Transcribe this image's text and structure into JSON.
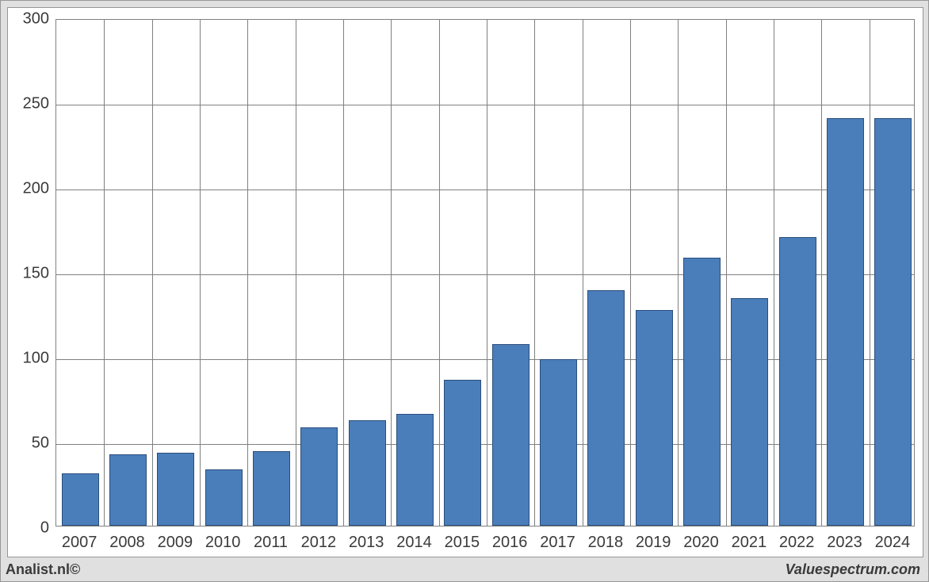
{
  "chart": {
    "type": "bar",
    "categories": [
      "2007",
      "2008",
      "2009",
      "2010",
      "2011",
      "2012",
      "2013",
      "2014",
      "2015",
      "2016",
      "2017",
      "2018",
      "2019",
      "2020",
      "2021",
      "2022",
      "2023",
      "2024"
    ],
    "values": [
      31,
      42,
      43,
      33,
      44,
      58,
      62,
      66,
      86,
      107,
      98,
      139,
      127,
      158,
      134,
      170,
      240,
      240
    ],
    "bar_color": "#4a7ebb",
    "bar_border_color": "#2a4d7a",
    "bar_width_ratio": 0.78,
    "ymin": 0,
    "ymax": 300,
    "ytick_step": 50,
    "yticks": [
      0,
      50,
      100,
      150,
      200,
      250,
      300
    ],
    "grid_color": "#808080",
    "plot_background": "#ffffff",
    "outer_background": "#e0e0e0",
    "outer_border_color": "#969696",
    "axis_label_color": "#3a3a3a",
    "axis_font_size_px": 20
  },
  "footer": {
    "left": "Analist.nl©",
    "right": "Valuespectrum.com"
  }
}
